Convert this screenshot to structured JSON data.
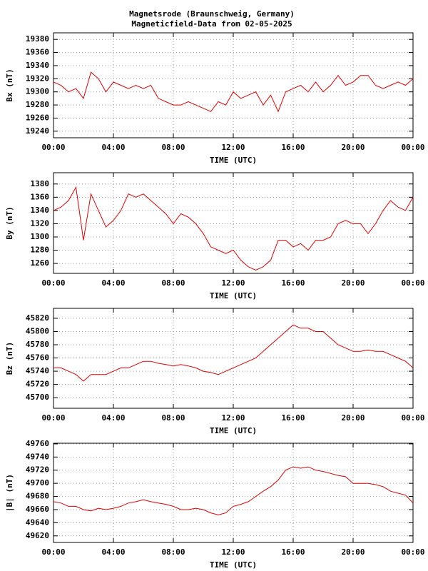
{
  "title": "Magnetsrode (Braunschweig, Germany)",
  "subtitle": "Magneticfield-Data from 02-05-2025",
  "chart_data": [
    {
      "type": "line",
      "ylabel": "Bx (nT)",
      "xlabel": "TIME (UTC)",
      "color": "#e00000",
      "grid": true,
      "x": [
        0,
        0.5,
        1,
        1.5,
        2,
        2.5,
        3,
        3.5,
        4,
        4.5,
        5,
        5.5,
        6,
        6.5,
        7,
        7.5,
        8,
        8.5,
        9,
        9.5,
        10,
        10.5,
        11,
        11.5,
        12,
        12.5,
        13,
        13.5,
        14,
        14.5,
        15,
        15.5,
        16,
        16.5,
        17,
        17.5,
        18,
        18.5,
        19,
        19.5,
        20,
        20.5,
        21,
        21.5,
        22,
        22.5,
        23,
        23.5,
        24
      ],
      "values": [
        19315,
        19310,
        19300,
        19305,
        19290,
        19330,
        19320,
        19300,
        19315,
        19310,
        19305,
        19310,
        19305,
        19310,
        19290,
        19285,
        19280,
        19280,
        19285,
        19280,
        19275,
        19270,
        19285,
        19280,
        19300,
        19290,
        19295,
        19300,
        19280,
        19295,
        19270,
        19300,
        19305,
        19310,
        19300,
        19315,
        19300,
        19310,
        19325,
        19310,
        19315,
        19325,
        19325,
        19310,
        19305,
        19310,
        19315,
        19310,
        19320
      ],
      "xlim": [
        0,
        24
      ],
      "xticks": [
        {
          "value": 0,
          "label": "00:00"
        },
        {
          "value": 4,
          "label": "04:00"
        },
        {
          "value": 8,
          "label": "08:00"
        },
        {
          "value": 12,
          "label": "12:00"
        },
        {
          "value": 16,
          "label": "16:00"
        },
        {
          "value": 20,
          "label": "20:00"
        },
        {
          "value": 24,
          "label": "00:00"
        }
      ],
      "ylim": [
        19230,
        19390
      ],
      "yticks": [
        19240,
        19260,
        19280,
        19300,
        19320,
        19340,
        19360,
        19380
      ]
    },
    {
      "type": "line",
      "ylabel": "By (nT)",
      "xlabel": "TIME (UTC)",
      "color": "#e00000",
      "grid": true,
      "x": [
        0,
        0.5,
        1,
        1.5,
        2,
        2.5,
        3,
        3.5,
        4,
        4.5,
        5,
        5.5,
        6,
        6.5,
        7,
        7.5,
        8,
        8.5,
        9,
        9.5,
        10,
        10.5,
        11,
        11.5,
        12,
        12.5,
        13,
        13.5,
        14,
        14.5,
        15,
        15.5,
        16,
        16.5,
        17,
        17.5,
        18,
        18.5,
        19,
        19.5,
        20,
        20.5,
        21,
        21.5,
        22,
        22.5,
        23,
        23.5,
        24
      ],
      "values": [
        1340,
        1345,
        1355,
        1375,
        1295,
        1365,
        1340,
        1315,
        1325,
        1340,
        1365,
        1360,
        1365,
        1355,
        1345,
        1335,
        1320,
        1335,
        1330,
        1320,
        1305,
        1285,
        1280,
        1275,
        1280,
        1265,
        1255,
        1250,
        1255,
        1265,
        1295,
        1295,
        1285,
        1290,
        1280,
        1295,
        1295,
        1300,
        1320,
        1325,
        1320,
        1320,
        1305,
        1320,
        1340,
        1355,
        1345,
        1340,
        1360
      ],
      "xlim": [
        0,
        24
      ],
      "xticks": [
        {
          "value": 0,
          "label": "00:00"
        },
        {
          "value": 4,
          "label": "04:00"
        },
        {
          "value": 8,
          "label": "08:00"
        },
        {
          "value": 12,
          "label": "12:00"
        },
        {
          "value": 16,
          "label": "16:00"
        },
        {
          "value": 20,
          "label": "20:00"
        },
        {
          "value": 24,
          "label": "00:00"
        }
      ],
      "ylim": [
        1245,
        1397
      ],
      "yticks": [
        1260,
        1280,
        1300,
        1320,
        1340,
        1360,
        1380
      ]
    },
    {
      "type": "line",
      "ylabel": "Bz (nT)",
      "xlabel": "TIME (UTC)",
      "color": "#e00000",
      "grid": true,
      "x": [
        0,
        0.5,
        1,
        1.5,
        2,
        2.5,
        3,
        3.5,
        4,
        4.5,
        5,
        5.5,
        6,
        6.5,
        7,
        7.5,
        8,
        8.5,
        9,
        9.5,
        10,
        10.5,
        11,
        11.5,
        12,
        12.5,
        13,
        13.5,
        14,
        14.5,
        15,
        15.5,
        16,
        16.5,
        17,
        17.5,
        18,
        18.5,
        19,
        19.5,
        20,
        20.5,
        21,
        21.5,
        22,
        22.5,
        23,
        23.5,
        24
      ],
      "values": [
        45745,
        45745,
        45740,
        45735,
        45725,
        45735,
        45735,
        45735,
        45740,
        45745,
        45745,
        45750,
        45755,
        45755,
        45752,
        45750,
        45748,
        45750,
        45748,
        45745,
        45740,
        45738,
        45735,
        45740,
        45745,
        45750,
        45755,
        45760,
        45770,
        45780,
        45790,
        45800,
        45810,
        45805,
        45805,
        45800,
        45800,
        45790,
        45780,
        45775,
        45770,
        45770,
        45772,
        45770,
        45770,
        45765,
        45760,
        45755,
        45745
      ],
      "xlim": [
        0,
        24
      ],
      "xticks": [
        {
          "value": 0,
          "label": "00:00"
        },
        {
          "value": 4,
          "label": "04:00"
        },
        {
          "value": 8,
          "label": "08:00"
        },
        {
          "value": 12,
          "label": "12:00"
        },
        {
          "value": 16,
          "label": "16:00"
        },
        {
          "value": 20,
          "label": "20:00"
        },
        {
          "value": 24,
          "label": "00:00"
        }
      ],
      "ylim": [
        45684,
        45835
      ],
      "yticks": [
        45700,
        45720,
        45740,
        45760,
        45780,
        45800,
        45820
      ]
    },
    {
      "type": "line",
      "ylabel": "|B| (nT)",
      "xlabel": "TIME (UTC)",
      "color": "#e00000",
      "grid": true,
      "x": [
        0,
        0.5,
        1,
        1.5,
        2,
        2.5,
        3,
        3.5,
        4,
        4.5,
        5,
        5.5,
        6,
        6.5,
        7,
        7.5,
        8,
        8.5,
        9,
        9.5,
        10,
        10.5,
        11,
        11.5,
        12,
        12.5,
        13,
        13.5,
        14,
        14.5,
        15,
        15.5,
        16,
        16.5,
        17,
        17.5,
        18,
        18.5,
        19,
        19.5,
        20,
        20.5,
        21,
        21.5,
        22,
        22.5,
        23,
        23.5,
        24
      ],
      "values": [
        49672,
        49670,
        49665,
        49665,
        49660,
        49658,
        49662,
        49660,
        49662,
        49665,
        49670,
        49672,
        49675,
        49672,
        49670,
        49668,
        49665,
        49660,
        49660,
        49662,
        49660,
        49655,
        49652,
        49655,
        49665,
        49668,
        49672,
        49680,
        49688,
        49695,
        49705,
        49720,
        49725,
        49723,
        49725,
        49720,
        49718,
        49715,
        49712,
        49710,
        49700,
        49700,
        49700,
        49698,
        49695,
        49688,
        49685,
        49682,
        49670
      ],
      "xlim": [
        0,
        24
      ],
      "xticks": [
        {
          "value": 0,
          "label": "00:00"
        },
        {
          "value": 4,
          "label": "04:00"
        },
        {
          "value": 8,
          "label": "08:00"
        },
        {
          "value": 12,
          "label": "12:00"
        },
        {
          "value": 16,
          "label": "16:00"
        },
        {
          "value": 20,
          "label": "20:00"
        },
        {
          "value": 24,
          "label": "00:00"
        }
      ],
      "ylim": [
        49610,
        49761
      ],
      "yticks": [
        49620,
        49640,
        49660,
        49680,
        49700,
        49720,
        49740,
        49760
      ]
    }
  ]
}
